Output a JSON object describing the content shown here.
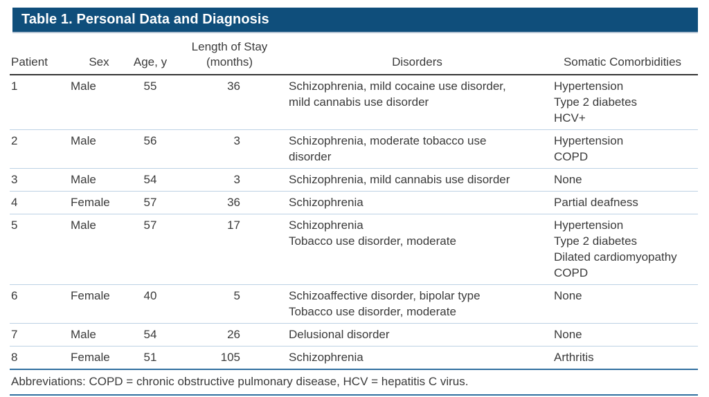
{
  "colors": {
    "title_bar_bg": "#0f4e7b",
    "title_text": "#ffffff",
    "body_text": "#3a3a3a",
    "header_underline": "#333333",
    "row_divider": "#bcd1e4",
    "footnote_rule": "#2f6e9f",
    "bar_underline": "#b4c3d3",
    "page_bg": "#ffffff"
  },
  "table": {
    "title": "Table 1. Personal Data and Diagnosis",
    "header": {
      "patient": "Patient",
      "sex": "Sex",
      "age": "Age, y",
      "length_of_stay_line1": "Length of Stay",
      "length_of_stay_line2": "(months)",
      "disorders": "Disorders",
      "somatic": "Somatic Comorbidities"
    },
    "rows": [
      {
        "patient": "1",
        "sex": "Male",
        "age": "55",
        "length_of_stay": "36",
        "disorders": [
          "Schizophrenia, mild cocaine use disorder,",
          "mild cannabis use disorder"
        ],
        "comorbidities": [
          "Hypertension",
          "Type 2 diabetes",
          "HCV+"
        ]
      },
      {
        "patient": "2",
        "sex": "Male",
        "age": "56",
        "length_of_stay": "3",
        "disorders": [
          "Schizophrenia, moderate tobacco use",
          "disorder"
        ],
        "comorbidities": [
          "Hypertension",
          "COPD"
        ]
      },
      {
        "patient": "3",
        "sex": "Male",
        "age": "54",
        "length_of_stay": "3",
        "disorders": [
          "Schizophrenia, mild cannabis use disorder"
        ],
        "comorbidities": [
          "None"
        ]
      },
      {
        "patient": "4",
        "sex": "Female",
        "age": "57",
        "length_of_stay": "36",
        "disorders": [
          "Schizophrenia"
        ],
        "comorbidities": [
          "Partial deafness"
        ]
      },
      {
        "patient": "5",
        "sex": "Male",
        "age": "57",
        "length_of_stay": "17",
        "disorders": [
          "Schizophrenia",
          "Tobacco use disorder, moderate"
        ],
        "comorbidities": [
          "Hypertension",
          "Type 2 diabetes",
          "Dilated cardiomyopathy",
          "COPD"
        ]
      },
      {
        "patient": "6",
        "sex": "Female",
        "age": "40",
        "length_of_stay": "5",
        "disorders": [
          "Schizoaffective disorder, bipolar type",
          "Tobacco use disorder, moderate"
        ],
        "comorbidities": [
          "None"
        ]
      },
      {
        "patient": "7",
        "sex": "Male",
        "age": "54",
        "length_of_stay": "26",
        "disorders": [
          "Delusional disorder"
        ],
        "comorbidities": [
          "None"
        ]
      },
      {
        "patient": "8",
        "sex": "Female",
        "age": "51",
        "length_of_stay": "105",
        "disorders": [
          "Schizophrenia"
        ],
        "comorbidities": [
          "Arthritis"
        ]
      }
    ],
    "footnote": "Abbreviations: COPD = chronic obstructive pulmonary disease, HCV = hepatitis C virus."
  }
}
